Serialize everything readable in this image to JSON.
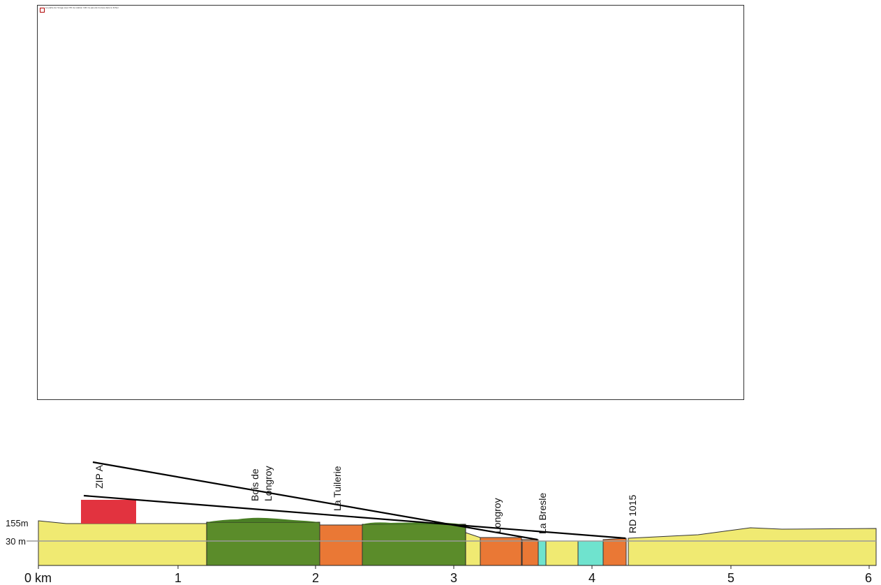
{
  "photo": {
    "caption": "La partie de l'image avec l'ID de relation rId3 n'a pas été trouvée dans le fichier."
  },
  "profile": {
    "elevation_labels": {
      "high": "155m",
      "low": "30 m"
    },
    "places": [
      {
        "name": "ZIP A"
      },
      {
        "name": "Bois de",
        "name2": "Longroy"
      },
      {
        "name": "La Tuilerie"
      },
      {
        "name": "Longroy"
      },
      {
        "name": "La Bresle"
      },
      {
        "name": "RD 1015"
      }
    ],
    "distance_ticks": [
      "0 km",
      "1",
      "2",
      "3",
      "4",
      "5",
      "6"
    ],
    "colors": {
      "open_land": "#f0ea72",
      "forest": "#5b8c2a",
      "forest_crown": "#4a7f25",
      "village": "#ea7835",
      "river": "#6fe3ce",
      "zip_block": "#e2333f",
      "ground_line": "#9a9a9a",
      "sight_line": "#000000"
    }
  }
}
